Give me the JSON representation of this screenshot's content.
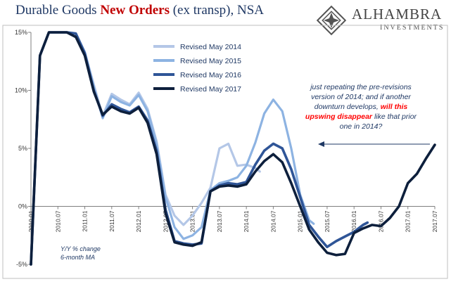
{
  "header": {
    "title_part1": "Durable Goods ",
    "title_part2": "New Orders",
    "title_part3": " (ex transp), NSA"
  },
  "logo": {
    "brand": "ALHAMBRA",
    "sub": "INVESTMENTS"
  },
  "annotation": {
    "part1": "just repeating the pre-revisions version of 2014; and if another downturn develops, ",
    "part2": "will this upswing disappear",
    "part3": " like that prior one in 2014?"
  },
  "y_label": {
    "line1": "Y/Y % change",
    "line2": "6-month MA"
  },
  "colors": {
    "title": "#1f3864",
    "title_highlight": "#c00000",
    "annotation_emphasis": "#ff0000",
    "s2014": "#b4c7e7",
    "s2015": "#8db3e2",
    "s2016": "#2f5597",
    "s2017": "#0d1f3c"
  },
  "chart_data": {
    "type": "line",
    "ylim": [
      -5,
      15
    ],
    "yticks": [
      -5,
      0,
      5,
      10,
      15
    ],
    "ytick_labels": [
      "-5%",
      "0%",
      "5%",
      "10%",
      "15%"
    ],
    "xlim": [
      2010.0,
      2017.5
    ],
    "xtick_positions": [
      2010.0,
      2010.5,
      2011.0,
      2011.5,
      2012.0,
      2012.5,
      2013.0,
      2013.5,
      2014.0,
      2014.5,
      2015.0,
      2015.5,
      2016.0,
      2016.5,
      2017.0,
      2017.5
    ],
    "xtick_labels": [
      "2010.01",
      "2010.07",
      "2011.01",
      "2011.07",
      "2012.01",
      "2012.07",
      "2013.01",
      "2013.07",
      "2014.01",
      "2014.07",
      "2015.01",
      "2015.07",
      "2016.01",
      "2016.07",
      "2017.01",
      "2017.07"
    ],
    "legend_position": "top-left",
    "series": [
      {
        "name": "Revised May 2014",
        "color_key": "s2014",
        "x": [
          2010.0,
          2010.167,
          2010.333,
          2010.5,
          2010.667,
          2010.833,
          2011.0,
          2011.167,
          2011.333,
          2011.5,
          2011.667,
          2011.833,
          2012.0,
          2012.167,
          2012.333,
          2012.5,
          2012.667,
          2012.833,
          2013.0,
          2013.167,
          2013.333,
          2013.5,
          2013.667,
          2013.833,
          2014.0,
          2014.167,
          2014.25
        ],
        "y": [
          -5,
          13,
          15.5,
          15.3,
          15.2,
          14.9,
          13.3,
          10.5,
          7.8,
          9.7,
          9.2,
          8.8,
          9.8,
          8.4,
          5.6,
          1.0,
          -0.8,
          -1.6,
          -0.8,
          0.3,
          1.6,
          5.0,
          5.4,
          3.5,
          3.6,
          3.3,
          3.0
        ]
      },
      {
        "name": "Revised May 2015",
        "color_key": "s2015",
        "x": [
          2010.0,
          2010.167,
          2010.333,
          2010.5,
          2010.667,
          2010.833,
          2011.0,
          2011.167,
          2011.333,
          2011.5,
          2011.667,
          2011.833,
          2012.0,
          2012.167,
          2012.333,
          2012.5,
          2012.667,
          2012.833,
          2013.0,
          2013.167,
          2013.333,
          2013.5,
          2013.667,
          2013.833,
          2014.0,
          2014.167,
          2014.333,
          2014.5,
          2014.667,
          2014.833,
          2015.0,
          2015.167,
          2015.25
        ],
        "y": [
          -5,
          13,
          15.5,
          15.3,
          15.2,
          14.9,
          13.3,
          10.3,
          7.6,
          9.5,
          9.0,
          8.7,
          9.6,
          8.2,
          5.4,
          0.8,
          -1.8,
          -2.8,
          -2.5,
          -1.8,
          1.4,
          2.0,
          2.2,
          2.5,
          3.5,
          5.5,
          8.0,
          9.2,
          8.2,
          5.0,
          1.0,
          -1.2,
          -1.5
        ]
      },
      {
        "name": "Revised May 2016",
        "color_key": "s2016",
        "x": [
          2010.0,
          2010.167,
          2010.333,
          2010.5,
          2010.667,
          2010.833,
          2011.0,
          2011.167,
          2011.333,
          2011.5,
          2011.667,
          2011.833,
          2012.0,
          2012.167,
          2012.333,
          2012.5,
          2012.667,
          2012.833,
          2013.0,
          2013.167,
          2013.333,
          2013.5,
          2013.667,
          2013.833,
          2014.0,
          2014.167,
          2014.333,
          2014.5,
          2014.667,
          2014.833,
          2015.0,
          2015.167,
          2015.333,
          2015.5,
          2015.667,
          2015.833,
          2016.0,
          2016.167,
          2016.25
        ],
        "y": [
          -5,
          13,
          15.5,
          15.3,
          15.2,
          14.9,
          13.2,
          10.0,
          7.8,
          8.8,
          8.4,
          8.1,
          8.6,
          7.4,
          4.8,
          -0.3,
          -3.0,
          -3.2,
          -3.3,
          -3.2,
          1.3,
          1.8,
          2.0,
          1.9,
          2.1,
          3.6,
          4.8,
          5.4,
          5.0,
          3.2,
          0.8,
          -1.6,
          -2.6,
          -3.5,
          -3.0,
          -2.6,
          -2.2,
          -1.6,
          -1.4
        ]
      },
      {
        "name": "Revised May 2017",
        "color_key": "s2017",
        "x": [
          2010.0,
          2010.167,
          2010.333,
          2010.5,
          2010.667,
          2010.833,
          2011.0,
          2011.167,
          2011.333,
          2011.5,
          2011.667,
          2011.833,
          2012.0,
          2012.167,
          2012.333,
          2012.5,
          2012.667,
          2012.833,
          2013.0,
          2013.167,
          2013.333,
          2013.5,
          2013.667,
          2013.833,
          2014.0,
          2014.167,
          2014.333,
          2014.5,
          2014.667,
          2014.833,
          2015.0,
          2015.167,
          2015.333,
          2015.5,
          2015.667,
          2015.833,
          2016.0,
          2016.167,
          2016.333,
          2016.5,
          2016.667,
          2016.833,
          2017.0,
          2017.167,
          2017.333,
          2017.5
        ],
        "y": [
          -5,
          13,
          15.5,
          15.3,
          15.2,
          14.6,
          13.0,
          9.9,
          7.9,
          8.6,
          8.2,
          8.0,
          8.5,
          7.2,
          4.5,
          -0.6,
          -3.1,
          -3.3,
          -3.4,
          -3.1,
          1.3,
          1.7,
          1.8,
          1.7,
          1.9,
          3.0,
          3.9,
          4.5,
          3.8,
          2.0,
          0.0,
          -2.0,
          -3.1,
          -4.0,
          -4.2,
          -4.1,
          -2.3,
          -1.9,
          -1.6,
          -1.7,
          -1.0,
          0.0,
          2.0,
          2.8,
          4.1,
          5.3
        ]
      }
    ]
  }
}
